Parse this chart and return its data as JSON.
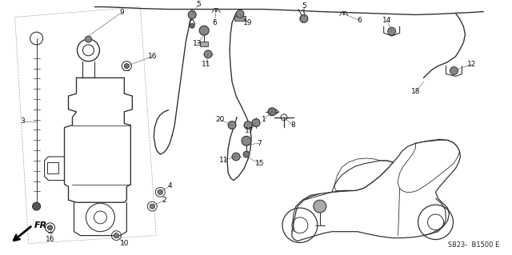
{
  "bg_color": "#ffffff",
  "diagram_code": "S823-  B1500 E",
  "fr_label": "FR.",
  "line_color": "#333333",
  "text_color": "#222222"
}
